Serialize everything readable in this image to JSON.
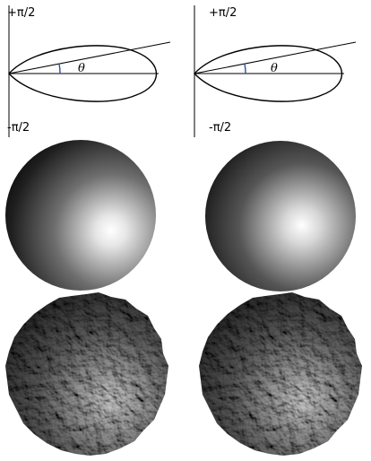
{
  "diagrams": [
    {
      "top_label": "+π/2",
      "bottom_label": "-π/2",
      "angle_label": "θ"
    },
    {
      "top_label": "+π/2",
      "bottom_label": "-π/2",
      "angle_label": "θ"
    }
  ],
  "colors": {
    "ink": "#000000",
    "angle_arc": "#2f4fa0",
    "background": "#ffffff"
  }
}
